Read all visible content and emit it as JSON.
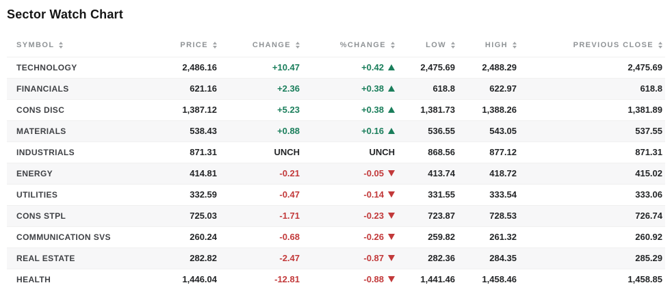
{
  "title": "Sector Watch Chart",
  "colors": {
    "positive": "#1A7E5B",
    "negative": "#C2393A",
    "header_text": "#8F9396",
    "row_stripe": "#F7F7F8"
  },
  "table": {
    "columns": [
      {
        "key": "symbol",
        "label": "SYMBOL",
        "align": "left",
        "sortable": true
      },
      {
        "key": "price",
        "label": "PRICE",
        "align": "right",
        "sortable": true
      },
      {
        "key": "change",
        "label": "CHANGE",
        "align": "right",
        "sortable": true
      },
      {
        "key": "pct-change",
        "label": "%CHANGE",
        "align": "right",
        "sortable": true
      },
      {
        "key": "low",
        "label": "LOW",
        "align": "right",
        "sortable": true
      },
      {
        "key": "high",
        "label": "HIGH",
        "align": "right",
        "sortable": true
      },
      {
        "key": "previous-close",
        "label": "PREVIOUS CLOSE",
        "align": "right",
        "sortable": true
      }
    ]
  },
  "chart_data": {
    "type": "table",
    "title": "Sector Watch Chart",
    "columns": [
      "SYMBOL",
      "PRICE",
      "CHANGE",
      "%CHANGE",
      "LOW",
      "HIGH",
      "PREVIOUS CLOSE"
    ],
    "rows": [
      {
        "symbol": "TECHNOLOGY",
        "price": "2,486.16",
        "change": "+10.47",
        "pct_change": "+0.42",
        "direction": "up",
        "low": "2,475.69",
        "high": "2,488.29",
        "previous_close": "2,475.69"
      },
      {
        "symbol": "FINANCIALS",
        "price": "621.16",
        "change": "+2.36",
        "pct_change": "+0.38",
        "direction": "up",
        "low": "618.8",
        "high": "622.97",
        "previous_close": "618.8"
      },
      {
        "symbol": "CONS DISC",
        "price": "1,387.12",
        "change": "+5.23",
        "pct_change": "+0.38",
        "direction": "up",
        "low": "1,381.73",
        "high": "1,388.26",
        "previous_close": "1,381.89"
      },
      {
        "symbol": "MATERIALS",
        "price": "538.43",
        "change": "+0.88",
        "pct_change": "+0.16",
        "direction": "up",
        "low": "536.55",
        "high": "543.05",
        "previous_close": "537.55"
      },
      {
        "symbol": "INDUSTRIALS",
        "price": "871.31",
        "change": "UNCH",
        "pct_change": "UNCH",
        "direction": "none",
        "low": "868.56",
        "high": "877.12",
        "previous_close": "871.31"
      },
      {
        "symbol": "ENERGY",
        "price": "414.81",
        "change": "-0.21",
        "pct_change": "-0.05",
        "direction": "down",
        "low": "413.74",
        "high": "418.72",
        "previous_close": "415.02"
      },
      {
        "symbol": "UTILITIES",
        "price": "332.59",
        "change": "-0.47",
        "pct_change": "-0.14",
        "direction": "down",
        "low": "331.55",
        "high": "333.54",
        "previous_close": "333.06"
      },
      {
        "symbol": "CONS STPL",
        "price": "725.03",
        "change": "-1.71",
        "pct_change": "-0.23",
        "direction": "down",
        "low": "723.87",
        "high": "728.53",
        "previous_close": "726.74"
      },
      {
        "symbol": "COMMUNICATION SVS",
        "price": "260.24",
        "change": "-0.68",
        "pct_change": "-0.26",
        "direction": "down",
        "low": "259.82",
        "high": "261.32",
        "previous_close": "260.92"
      },
      {
        "symbol": "REAL ESTATE",
        "price": "282.82",
        "change": "-2.47",
        "pct_change": "-0.87",
        "direction": "down",
        "low": "282.36",
        "high": "284.35",
        "previous_close": "285.29"
      },
      {
        "symbol": "HEALTH",
        "price": "1,446.04",
        "change": "-12.81",
        "pct_change": "-0.88",
        "direction": "down",
        "low": "1,441.46",
        "high": "1,458.46",
        "previous_close": "1,458.85"
      }
    ]
  }
}
